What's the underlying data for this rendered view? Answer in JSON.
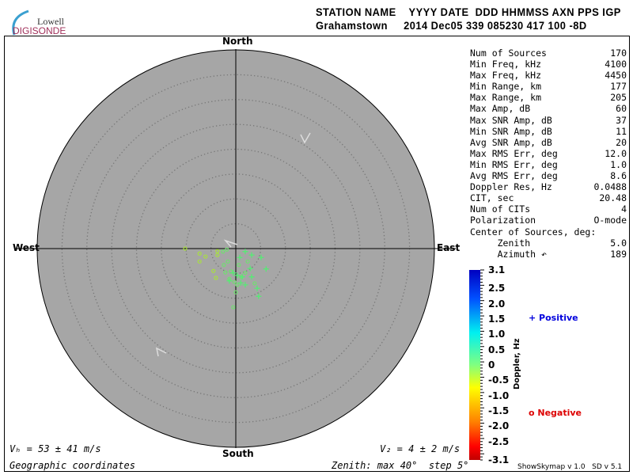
{
  "logo": {
    "line1": "Lowell",
    "line2": "DIGISONDE"
  },
  "header": {
    "labels": "STATION NAME    YYYY DATE  DDD HHMMSS AXN PPS IGP",
    "values": "Grahamstown     2014 Dec05 339 085230 417 100 -8D"
  },
  "stats": [
    {
      "label": "Num of Sources",
      "value": "170"
    },
    {
      "label": "Min Freq, kHz",
      "value": "4100"
    },
    {
      "label": "Max Freq, kHz",
      "value": "4450"
    },
    {
      "label": "Min Range, km",
      "value": "177"
    },
    {
      "label": "Max Range, km",
      "value": "205"
    },
    {
      "label": "Max Amp, dB",
      "value": "60"
    },
    {
      "label": "Max SNR Amp, dB",
      "value": "37"
    },
    {
      "label": "Min SNR Amp, dB",
      "value": "11"
    },
    {
      "label": "Avg SNR Amp, dB",
      "value": "20"
    },
    {
      "label": "Max RMS Err, deg",
      "value": "12.0"
    },
    {
      "label": "Min RMS Err, deg",
      "value": "1.0"
    },
    {
      "label": "Avg RMS Err, deg",
      "value": "8.6"
    },
    {
      "label": "Doppler Res, Hz",
      "value": "0.0488"
    },
    {
      "label": "CIT, sec",
      "value": "20.48"
    },
    {
      "label": "Num of CITs",
      "value": "4"
    },
    {
      "label": "Polarization",
      "value": "O-mode"
    },
    {
      "label": "Center of Sources, deg:",
      "value": ""
    },
    {
      "label": "     Zenith",
      "value": "5.0"
    },
    {
      "label": "     Azimuth ↶",
      "value": "189"
    }
  ],
  "directions": {
    "north": "North",
    "south": "South",
    "east": "East",
    "west": "West"
  },
  "footer": {
    "vh": "Vₕ = 53 ± 41 m/s",
    "vz": "V₂ = 4 ± 2 m/s",
    "coords": "Geographic coordinates",
    "zenith": "Zenith: max 40°  step 5°",
    "version": "ShowSkymap v 1.0   SD v 5.1"
  },
  "legend": {
    "positive": "Positive",
    "negative": "Negative",
    "positive_color": "#0000dd",
    "negative_color": "#dd0000"
  },
  "chart_data": {
    "type": "scatter",
    "projection": "polar skymap",
    "zenith_max_deg": 40,
    "zenith_step_deg": 5,
    "colorbar": {
      "label": "Doppler, Hz",
      "range": [
        -3.1,
        3.1
      ],
      "ticks": [
        "3.1",
        "2.5",
        "2.0",
        "1.5",
        "1.0",
        "0.5",
        "0",
        "-0.5",
        "-1.0",
        "-1.5",
        "-2.0",
        "-2.5",
        "-3.1"
      ]
    },
    "point_fields": [
      "tilt_east_deg",
      "tilt_north_deg"
    ],
    "negative_points": [
      [
        -10.2,
        0
      ],
      [
        -7.3,
        -1
      ],
      [
        -7.3,
        -2.6
      ],
      [
        -6.1,
        -1.6
      ],
      [
        -3.7,
        -0.5
      ],
      [
        -3.7,
        -1.3
      ],
      [
        -2.6,
        -0.6
      ],
      [
        -1.8,
        -0.2
      ],
      [
        -1.6,
        -2.6
      ],
      [
        -4.5,
        -4.5
      ],
      [
        -4,
        -5.9
      ],
      [
        -2.1,
        -4.8
      ],
      [
        -1.3,
        -6.1
      ],
      [
        -0.3,
        -6.7
      ],
      [
        0.3,
        -7.3
      ],
      [
        1.1,
        -5.7
      ],
      [
        1.9,
        -4.9
      ],
      [
        -0.5,
        -11.8
      ],
      [
        0,
        -8.8
      ],
      [
        3.8,
        -7
      ],
      [
        -2.4,
        -3.3
      ],
      [
        -1,
        -4.6
      ],
      [
        0.6,
        -3.3
      ],
      [
        2.4,
        -2.6
      ]
    ],
    "positive_points": [
      [
        0.8,
        -1.8
      ],
      [
        1.9,
        -0.6
      ],
      [
        3.2,
        -1.3
      ],
      [
        5.1,
        -1.8
      ],
      [
        6.1,
        -4.1
      ],
      [
        2.9,
        -4
      ],
      [
        4.6,
        -9.6
      ],
      [
        4.3,
        -8
      ],
      [
        1.3,
        -5.7
      ],
      [
        0.3,
        -5.4
      ],
      [
        -0.5,
        -4.9
      ],
      [
        3.2,
        -5.7
      ],
      [
        1,
        -6.9
      ],
      [
        1.9,
        -7.3
      ],
      [
        -1.3,
        -6.5
      ]
    ]
  }
}
